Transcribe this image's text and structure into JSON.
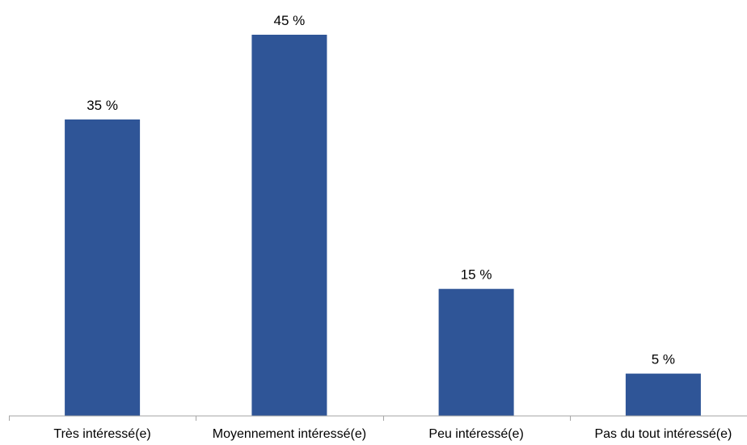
{
  "chart_data": {
    "type": "bar",
    "categories": [
      "Très intéressé(e)",
      "Moyennement intéressé(e)",
      "Peu intéressé(e)",
      "Pas du tout intéressé(e)"
    ],
    "values": [
      35,
      45,
      15,
      5
    ],
    "value_labels": [
      "35 %",
      "45 %",
      "15 %",
      "5 %"
    ],
    "unit": "%",
    "ylim": [
      0,
      50
    ],
    "grid": false,
    "legend": "none",
    "bar_color": "#2f5597"
  }
}
